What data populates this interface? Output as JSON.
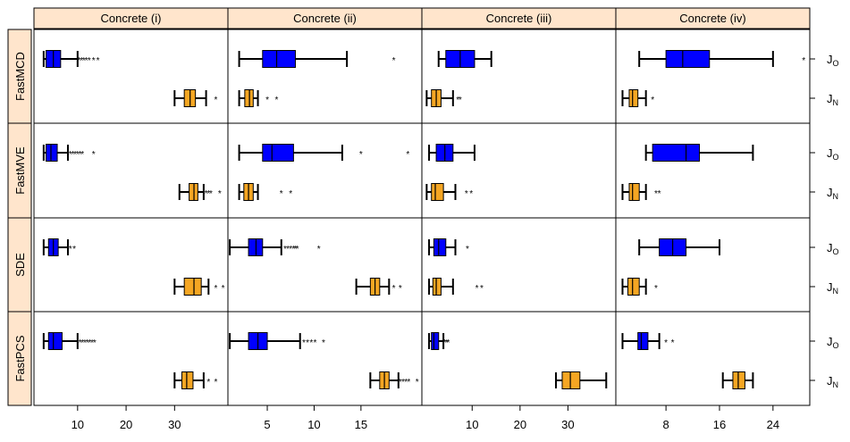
{
  "chart_data": {
    "type": "boxplot",
    "colors": {
      "J_O": "#0000ff",
      "J_N": "#f5a623",
      "strip": "#ffe5cc"
    },
    "columns": [
      "Concrete (i)",
      "Concrete (ii)",
      "Concrete (iii)",
      "Concrete (iv)"
    ],
    "rows": [
      "FastMCD",
      "FastMVE",
      "SDE",
      "FastPCS"
    ],
    "series": [
      {
        "label_main": "J",
        "label_sub": "O",
        "color": "#0000ff"
      },
      {
        "label_main": "J",
        "label_sub": "N",
        "color": "#f5a623"
      }
    ],
    "x_axes": [
      {
        "ticks": [
          10,
          20,
          30
        ],
        "labels": [
          "10",
          "20",
          "30"
        ],
        "xlim": [
          1,
          41
        ]
      },
      {
        "ticks": [
          5,
          10,
          15
        ],
        "labels": [
          "5",
          "10",
          "15"
        ],
        "xlim": [
          0.8,
          21.5
        ]
      },
      {
        "ticks": [
          10,
          20,
          30
        ],
        "labels": [
          "10",
          "20",
          "30"
        ],
        "xlim": [
          -0.5,
          40
        ]
      },
      {
        "ticks": [
          8,
          16,
          24
        ],
        "labels": [
          "8",
          "16",
          "24"
        ],
        "xlim": [
          0.5,
          29.5
        ]
      }
    ],
    "panels": [
      [
        [
          {
            "wlo": 3,
            "q1": 3.5,
            "med": 5,
            "q3": 6.5,
            "whi": 10,
            "out": [
              10.3,
              10.8,
              11.3,
              11.8,
              12.4,
              13.3,
              14.2
            ]
          },
          {
            "wlo": 30,
            "q1": 32,
            "med": 33.2,
            "q3": 34.3,
            "whi": 36.5,
            "out": [
              38.5
            ]
          }
        ],
        [
          {
            "wlo": 2,
            "q1": 4.5,
            "med": 6,
            "q3": 8,
            "whi": 13.5,
            "out": [
              18.5
            ]
          },
          {
            "wlo": 2,
            "q1": 2.6,
            "med": 3.1,
            "q3": 3.5,
            "whi": 4,
            "out": [
              5,
              6
            ]
          }
        ],
        [
          {
            "wlo": 3,
            "q1": 4.5,
            "med": 7.5,
            "q3": 10.5,
            "whi": 14,
            "out": []
          },
          {
            "wlo": 0.5,
            "q1": 1.5,
            "med": 2.5,
            "q3": 3.5,
            "whi": 6,
            "out": [
              7,
              7.5
            ]
          }
        ],
        [
          {
            "wlo": 4,
            "q1": 8,
            "med": 10.5,
            "q3": 14.5,
            "whi": 24,
            "out": [
              28.6
            ]
          },
          {
            "wlo": 1.5,
            "q1": 2.5,
            "med": 3,
            "q3": 3.8,
            "whi": 5,
            "out": [
              6
            ]
          }
        ]
      ],
      [
        [
          {
            "wlo": 3,
            "q1": 3.5,
            "med": 4.5,
            "q3": 5.8,
            "whi": 8,
            "out": [
              8.5,
              9,
              9.5,
              10,
              10.5,
              11,
              13.3
            ]
          },
          {
            "wlo": 31,
            "q1": 33,
            "med": 34,
            "q3": 34.8,
            "whi": 36,
            "out": [
              36.5,
              37,
              37.5,
              39.3
            ]
          }
        ],
        [
          {
            "wlo": 2,
            "q1": 4.5,
            "med": 5.5,
            "q3": 7.8,
            "whi": 13,
            "out": [
              15,
              20
            ]
          },
          {
            "wlo": 2,
            "q1": 2.5,
            "med": 3,
            "q3": 3.5,
            "whi": 4,
            "out": [
              6.5,
              7.5
            ]
          }
        ],
        [
          {
            "wlo": 1,
            "q1": 2.5,
            "med": 4.3,
            "q3": 6,
            "whi": 10.5,
            "out": []
          },
          {
            "wlo": 0.5,
            "q1": 1.5,
            "med": 2.3,
            "q3": 4,
            "whi": 6.5,
            "out": [
              8.8,
              9.8
            ]
          }
        ],
        [
          {
            "wlo": 5,
            "q1": 6,
            "med": 11,
            "q3": 13,
            "whi": 21,
            "out": []
          },
          {
            "wlo": 1.5,
            "q1": 2.5,
            "med": 3,
            "q3": 4,
            "whi": 5,
            "out": [
              6.5,
              7
            ]
          }
        ]
      ],
      [
        [
          {
            "wlo": 3,
            "q1": 4,
            "med": 5,
            "q3": 6,
            "whi": 8,
            "out": [
              8.5,
              9.3
            ]
          },
          {
            "wlo": 30,
            "q1": 32,
            "med": 34,
            "q3": 35.5,
            "whi": 37,
            "out": [
              38.5,
              40
            ]
          }
        ],
        [
          {
            "wlo": 1,
            "q1": 3,
            "med": 3.8,
            "q3": 4.5,
            "whi": 6.5,
            "out": [
              6.9,
              7.2,
              7.5,
              7.8,
              8,
              8.2,
              10.5
            ]
          },
          {
            "wlo": 14.5,
            "q1": 16,
            "med": 16.5,
            "q3": 17,
            "whi": 18,
            "out": [
              18.5,
              19.2
            ]
          }
        ],
        [
          {
            "wlo": 1,
            "q1": 2,
            "med": 3,
            "q3": 4.5,
            "whi": 6.5,
            "out": [
              9
            ]
          },
          {
            "wlo": 1,
            "q1": 1.8,
            "med": 2.5,
            "q3": 3.5,
            "whi": 6,
            "out": [
              11,
              12
            ]
          }
        ],
        [
          {
            "wlo": 4,
            "q1": 7,
            "med": 9,
            "q3": 11,
            "whi": 16,
            "out": []
          },
          {
            "wlo": 1.5,
            "q1": 2.3,
            "med": 3,
            "q3": 4,
            "whi": 5,
            "out": [
              6.5
            ]
          }
        ]
      ],
      [
        [
          {
            "wlo": 3,
            "q1": 4,
            "med": 5,
            "q3": 6.8,
            "whi": 10,
            "out": [
              10.5,
              11,
              11.5,
              12,
              12.5,
              13,
              13.5
            ]
          },
          {
            "wlo": 30,
            "q1": 31.5,
            "med": 32.5,
            "q3": 33.8,
            "whi": 36,
            "out": [
              37,
              38.5
            ]
          }
        ],
        [
          {
            "wlo": 1,
            "q1": 3,
            "med": 4,
            "q3": 5,
            "whi": 8.5,
            "out": [
              8.9,
              9.3,
              9.7,
              10.1,
              11
            ]
          },
          {
            "wlo": 16,
            "q1": 17,
            "med": 17.5,
            "q3": 18,
            "whi": 19,
            "out": [
              19.2,
              19.5,
              19.8,
              20.1,
              21
            ]
          }
        ],
        [
          {
            "wlo": 1,
            "q1": 1.5,
            "med": 2,
            "q3": 3,
            "whi": 4,
            "out": [
              4.3,
              4.7,
              5
            ]
          },
          {
            "wlo": 27.5,
            "q1": 28.8,
            "med": 30.5,
            "q3": 32.5,
            "whi": 38,
            "out": []
          }
        ],
        [
          {
            "wlo": 1.5,
            "q1": 3.8,
            "med": 4.3,
            "q3": 5.3,
            "whi": 7,
            "out": [
              8,
              9
            ]
          },
          {
            "wlo": 16.5,
            "q1": 18,
            "med": 18.8,
            "q3": 19.8,
            "whi": 21,
            "out": []
          }
        ]
      ]
    ]
  }
}
